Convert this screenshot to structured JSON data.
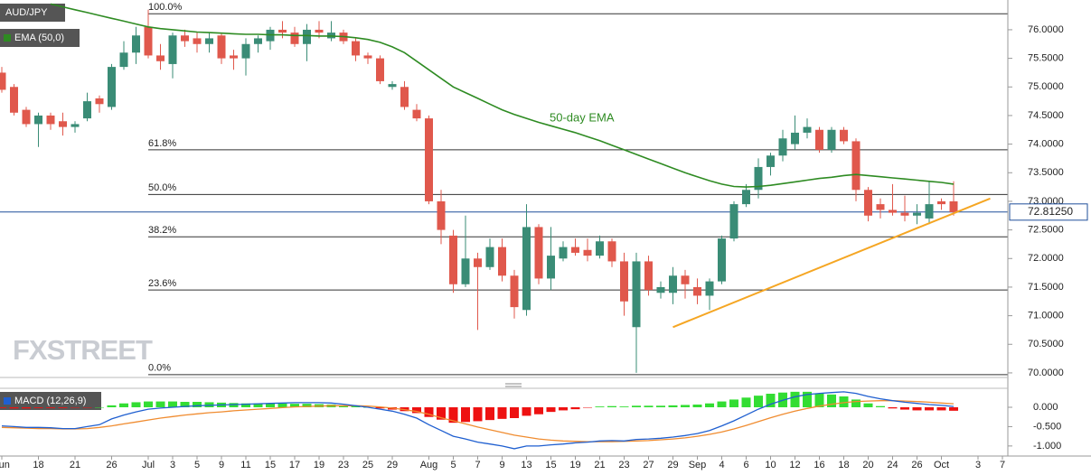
{
  "chart_data": {
    "type": "candlestick",
    "symbol": "AUD/JPY",
    "indicator_label": "EMA (50,0)",
    "annotation": "50-day EMA",
    "watermark": "FXSTREET",
    "up_color": "#3a8c76",
    "down_color": "#e0584c",
    "categories": [
      "Jun",
      null,
      null,
      "18",
      null,
      null,
      "21",
      null,
      null,
      "26",
      null,
      null,
      "Jul",
      null,
      "3",
      null,
      "5",
      null,
      "9",
      null,
      "11",
      null,
      "15",
      null,
      "17",
      null,
      "19",
      null,
      "23",
      null,
      "25",
      null,
      "29",
      null,
      null,
      "Aug",
      null,
      "5",
      null,
      "7",
      null,
      "9",
      null,
      "13",
      null,
      "15",
      null,
      "19",
      null,
      "21",
      null,
      "23",
      null,
      "27",
      null,
      "29",
      null,
      "Sep",
      null,
      "4",
      null,
      "6",
      null,
      "10",
      null,
      "12",
      null,
      "16",
      null,
      "18",
      null,
      "20",
      null,
      "24",
      null,
      "26",
      null,
      "Oct",
      null,
      null,
      "3",
      null,
      "7"
    ],
    "open": [
      75.25,
      75.0,
      74.6,
      74.35,
      74.5,
      74.4,
      74.3,
      74.45,
      74.8,
      74.65,
      75.35,
      75.6,
      76.05,
      75.55,
      75.4,
      75.9,
      75.85,
      75.75,
      75.9,
      75.55,
      75.5,
      75.75,
      75.8,
      76.0,
      75.95,
      75.75,
      76.0,
      75.85,
      75.95,
      75.8,
      75.55,
      75.5,
      75.0,
      75.0,
      74.6,
      74.45,
      73.0,
      72.4,
      71.55,
      72.0,
      71.85,
      72.2,
      71.7,
      71.1,
      72.55,
      71.65,
      72.0,
      72.2,
      72.15,
      72.05,
      72.3,
      71.95,
      70.8,
      71.95,
      71.4,
      71.4,
      71.7,
      71.5,
      71.35,
      71.6,
      72.35,
      72.95,
      73.2,
      73.6,
      73.8,
      74.0,
      74.2,
      74.25,
      73.9,
      74.25,
      74.05,
      73.2,
      72.95,
      72.85,
      72.8,
      72.75,
      72.7,
      73.0,
      73.0,
      null,
      null,
      null,
      null
    ],
    "high": [
      75.35,
      75.05,
      74.65,
      74.55,
      74.55,
      74.55,
      74.4,
      74.9,
      74.85,
      75.4,
      75.8,
      76.05,
      76.35,
      75.75,
      75.95,
      76.0,
      75.95,
      75.95,
      75.95,
      75.65,
      75.85,
      75.9,
      76.05,
      76.15,
      76.05,
      76.1,
      76.15,
      76.15,
      76.0,
      75.85,
      75.6,
      75.55,
      75.1,
      75.1,
      74.7,
      74.5,
      73.2,
      72.5,
      72.75,
      72.1,
      72.35,
      72.35,
      71.8,
      72.95,
      72.6,
      72.55,
      72.3,
      72.35,
      72.35,
      72.4,
      72.35,
      72.1,
      72.1,
      72.05,
      71.6,
      71.85,
      71.8,
      71.65,
      71.65,
      72.4,
      73.0,
      73.3,
      73.75,
      73.85,
      74.25,
      74.5,
      74.45,
      74.3,
      74.3,
      74.3,
      74.1,
      73.25,
      73.05,
      73.3,
      73.1,
      72.95,
      73.35,
      73.05,
      73.35,
      null,
      null,
      null,
      null
    ],
    "low": [
      74.9,
      74.5,
      74.3,
      73.95,
      74.25,
      74.15,
      74.2,
      74.4,
      74.55,
      74.6,
      75.3,
      75.4,
      75.5,
      75.3,
      75.15,
      75.7,
      75.6,
      75.6,
      75.4,
      75.3,
      75.2,
      75.6,
      75.65,
      75.85,
      75.7,
      75.45,
      75.85,
      75.8,
      75.75,
      75.45,
      75.4,
      75.05,
      74.95,
      74.6,
      74.4,
      72.95,
      72.25,
      71.4,
      71.5,
      70.75,
      71.8,
      71.6,
      70.95,
      71.0,
      71.55,
      71.45,
      71.95,
      72.05,
      71.95,
      72.0,
      71.85,
      71.0,
      70.0,
      71.35,
      71.3,
      71.2,
      71.3,
      71.2,
      71.1,
      71.55,
      72.3,
      72.9,
      73.05,
      73.45,
      73.7,
      73.9,
      74.1,
      73.85,
      73.85,
      74.0,
      73.0,
      72.65,
      72.7,
      72.75,
      72.65,
      72.6,
      72.6,
      72.85,
      72.75,
      null,
      null,
      null,
      null
    ],
    "close": [
      74.95,
      74.55,
      74.35,
      74.5,
      74.35,
      74.3,
      74.35,
      74.75,
      74.7,
      75.35,
      75.6,
      75.9,
      75.55,
      75.45,
      75.9,
      75.8,
      75.75,
      75.85,
      75.5,
      75.5,
      75.75,
      75.85,
      76.0,
      75.95,
      75.75,
      76.0,
      75.95,
      75.95,
      75.8,
      75.55,
      75.5,
      75.1,
      75.05,
      74.65,
      74.45,
      73.0,
      72.5,
      71.55,
      72.0,
      71.85,
      72.2,
      71.7,
      71.15,
      72.55,
      71.65,
      72.05,
      72.2,
      72.1,
      72.05,
      72.3,
      71.95,
      71.25,
      71.95,
      71.45,
      71.5,
      71.7,
      71.55,
      71.35,
      71.6,
      72.35,
      72.95,
      73.2,
      73.6,
      73.8,
      74.1,
      74.2,
      74.3,
      73.9,
      74.25,
      74.05,
      73.2,
      72.75,
      72.85,
      72.8,
      72.75,
      72.8,
      72.95,
      72.95,
      72.81,
      null,
      null,
      null,
      null
    ],
    "ema": {
      "color": "#2e8b22",
      "values": [
        null,
        null,
        null,
        null,
        76.45,
        76.4,
        76.35,
        76.3,
        76.25,
        76.2,
        76.15,
        76.1,
        76.05,
        76.02,
        76.0,
        75.98,
        75.96,
        75.95,
        75.94,
        75.93,
        75.92,
        75.92,
        75.91,
        75.91,
        75.9,
        75.9,
        75.89,
        75.89,
        75.88,
        75.86,
        75.83,
        75.78,
        75.7,
        75.6,
        75.45,
        75.3,
        75.15,
        75.0,
        74.9,
        74.8,
        74.7,
        74.6,
        74.52,
        74.45,
        74.38,
        74.32,
        74.26,
        74.2,
        74.13,
        74.06,
        73.98,
        73.9,
        73.82,
        73.74,
        73.66,
        73.58,
        73.5,
        73.43,
        73.36,
        73.3,
        73.26,
        73.25,
        73.26,
        73.28,
        73.31,
        73.34,
        73.37,
        73.4,
        73.42,
        73.45,
        73.47,
        73.45,
        73.43,
        73.41,
        73.39,
        73.37,
        73.35,
        73.33,
        73.3,
        null,
        null,
        null,
        null
      ]
    },
    "fib_levels": [
      {
        "label": "100.0%",
        "value": 76.28
      },
      {
        "label": "61.8%",
        "value": 73.9
      },
      {
        "label": "50.0%",
        "value": 73.12
      },
      {
        "label": "38.2%",
        "value": 72.38
      },
      {
        "label": "23.6%",
        "value": 71.45
      },
      {
        "label": "0.0%",
        "value": 69.97
      }
    ],
    "trendline": {
      "color": "#f5a623",
      "x": [
        55,
        81
      ],
      "values": [
        70.8,
        73.05
      ]
    },
    "last_price": 72.8125,
    "last_price_label": "72.81250",
    "last_price_color": "#1f4f9a",
    "ylim": [
      69.92,
      76.52
    ],
    "yticks": [
      {
        "value": 70,
        "label": "70.0000"
      },
      {
        "value": 70.5,
        "label": "70.5000"
      },
      {
        "value": 71,
        "label": "71.0000"
      },
      {
        "value": 71.5,
        "label": "71.5000"
      },
      {
        "value": 72,
        "label": "72.0000"
      },
      {
        "value": 72.5,
        "label": "72.5000"
      },
      {
        "value": 73,
        "label": "73.0000"
      },
      {
        "value": 73.5,
        "label": "73.5000"
      },
      {
        "value": 74,
        "label": "74.0000"
      },
      {
        "value": 74.5,
        "label": "74.5000"
      },
      {
        "value": 75,
        "label": "75.0000"
      },
      {
        "value": 75.5,
        "label": "75.5000"
      },
      {
        "value": 76,
        "label": "76.0000"
      }
    ],
    "macd": {
      "title": "MACD (12,26,9)",
      "ylim": [
        -1.26,
        0.49
      ],
      "yticks": [
        {
          "value": 0,
          "label": "0.000"
        },
        {
          "value": -0.5,
          "label": "-0.500"
        },
        {
          "value": -1,
          "label": "-1.000"
        }
      ],
      "hist_pos_color": "#33dd33",
      "hist_neg_color": "#ee1111",
      "histogram": [
        -0.02,
        -0.03,
        -0.03,
        -0.02,
        -0.02,
        -0.02,
        -0.01,
        -0.01,
        0.0,
        0.05,
        0.1,
        0.13,
        0.15,
        0.15,
        0.15,
        0.14,
        0.14,
        0.13,
        0.12,
        0.11,
        0.1,
        0.1,
        0.1,
        0.1,
        0.09,
        0.09,
        0.08,
        0.07,
        0.05,
        0.03,
        0.0,
        -0.03,
        -0.06,
        -0.1,
        -0.15,
        -0.25,
        -0.32,
        -0.4,
        -0.38,
        -0.36,
        -0.33,
        -0.3,
        -0.28,
        -0.22,
        -0.18,
        -0.12,
        -0.08,
        -0.05,
        -0.01,
        0.02,
        0.03,
        0.02,
        0.04,
        0.04,
        0.04,
        0.05,
        0.06,
        0.07,
        0.1,
        0.15,
        0.2,
        0.25,
        0.3,
        0.35,
        0.38,
        0.4,
        0.4,
        0.36,
        0.33,
        0.28,
        0.2,
        0.1,
        0.03,
        -0.03,
        -0.06,
        -0.08,
        -0.08,
        -0.08,
        -0.09,
        null,
        null,
        null,
        null
      ],
      "macd_line": {
        "color": "#1f5fd0",
        "values": [
          -0.48,
          -0.5,
          -0.52,
          -0.52,
          -0.53,
          -0.55,
          -0.55,
          -0.5,
          -0.45,
          -0.3,
          -0.2,
          -0.12,
          -0.05,
          -0.02,
          0.0,
          0.02,
          0.04,
          0.05,
          0.06,
          0.07,
          0.08,
          0.09,
          0.1,
          0.11,
          0.12,
          0.12,
          0.12,
          0.11,
          0.08,
          0.04,
          0.0,
          -0.05,
          -0.1,
          -0.18,
          -0.28,
          -0.45,
          -0.6,
          -0.75,
          -0.82,
          -0.9,
          -0.95,
          -1.0,
          -1.07,
          -1.0,
          -1.0,
          -0.97,
          -0.95,
          -0.92,
          -0.9,
          -0.87,
          -0.86,
          -0.87,
          -0.83,
          -0.82,
          -0.8,
          -0.77,
          -0.73,
          -0.68,
          -0.6,
          -0.48,
          -0.35,
          -0.2,
          -0.05,
          0.08,
          0.18,
          0.27,
          0.33,
          0.36,
          0.38,
          0.4,
          0.36,
          0.28,
          0.22,
          0.17,
          0.13,
          0.1,
          0.07,
          0.05,
          0.02,
          null,
          null,
          null,
          null
        ]
      },
      "signal_line": {
        "color": "#f08c30",
        "values": [
          -0.52,
          -0.53,
          -0.54,
          -0.55,
          -0.55,
          -0.56,
          -0.56,
          -0.55,
          -0.52,
          -0.48,
          -0.43,
          -0.38,
          -0.33,
          -0.28,
          -0.24,
          -0.2,
          -0.17,
          -0.14,
          -0.12,
          -0.09,
          -0.07,
          -0.05,
          -0.03,
          -0.01,
          0.01,
          0.02,
          0.03,
          0.04,
          0.04,
          0.04,
          0.03,
          0.01,
          -0.02,
          -0.06,
          -0.11,
          -0.18,
          -0.27,
          -0.35,
          -0.43,
          -0.51,
          -0.58,
          -0.65,
          -0.72,
          -0.77,
          -0.82,
          -0.85,
          -0.87,
          -0.88,
          -0.89,
          -0.89,
          -0.89,
          -0.88,
          -0.87,
          -0.86,
          -0.84,
          -0.82,
          -0.79,
          -0.75,
          -0.7,
          -0.64,
          -0.56,
          -0.47,
          -0.37,
          -0.27,
          -0.18,
          -0.1,
          -0.03,
          0.03,
          0.08,
          0.12,
          0.15,
          0.16,
          0.17,
          0.17,
          0.16,
          0.15,
          0.13,
          0.11,
          0.09,
          null,
          null,
          null,
          null
        ]
      }
    }
  }
}
